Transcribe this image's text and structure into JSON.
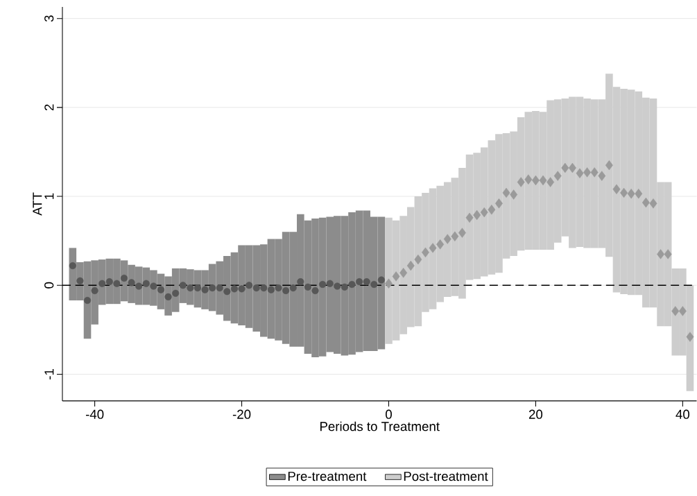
{
  "chart_data": {
    "type": "bar",
    "xlabel": "Periods to Treatment",
    "ylabel": "ATT",
    "xlim": [
      -44.4,
      41.9
    ],
    "ylim": [
      -1.3,
      3.13
    ],
    "xticks": [
      -40,
      -20,
      0,
      20,
      40
    ],
    "yticks": [
      -1,
      0,
      1,
      2,
      3
    ],
    "grid": "y",
    "legend": "bottom",
    "ref_lines": [
      {
        "axis": "y",
        "value": 0,
        "color": "#000000",
        "line_style": "dashed"
      }
    ],
    "series": [
      {
        "name": "Pre-treatment",
        "color": "#8c8c8c",
        "x": [
          -43,
          -42,
          -41,
          -40,
          -39,
          -38,
          -37,
          -36,
          -35,
          -34,
          -33,
          -32,
          -31,
          -30,
          -29,
          -28,
          -27,
          -26,
          -25,
          -24,
          -23,
          -22,
          -21,
          -20,
          -19,
          -18,
          -17,
          -16,
          -15,
          -14,
          -13,
          -12,
          -11,
          -10,
          -9,
          -8,
          -7,
          -6,
          -5,
          -4,
          -3,
          -2,
          -1
        ],
        "base": [
          -0.17,
          -0.17,
          -0.6,
          -0.44,
          -0.22,
          -0.21,
          -0.21,
          -0.18,
          -0.2,
          -0.22,
          -0.22,
          -0.23,
          -0.27,
          -0.34,
          -0.3,
          -0.2,
          -0.22,
          -0.25,
          -0.27,
          -0.29,
          -0.33,
          -0.4,
          -0.43,
          -0.45,
          -0.48,
          -0.52,
          -0.58,
          -0.6,
          -0.62,
          -0.66,
          -0.69,
          -0.69,
          -0.77,
          -0.81,
          -0.8,
          -0.75,
          -0.77,
          -0.79,
          -0.78,
          -0.75,
          -0.74,
          -0.74,
          -0.72
        ],
        "values": [
          0.59,
          0.43,
          0.87,
          0.72,
          0.51,
          0.51,
          0.51,
          0.46,
          0.43,
          0.43,
          0.42,
          0.4,
          0.4,
          0.44,
          0.49,
          0.39,
          0.4,
          0.42,
          0.44,
          0.53,
          0.6,
          0.73,
          0.8,
          0.9,
          0.93,
          0.97,
          1.04,
          1.12,
          1.14,
          1.26,
          1.29,
          1.49,
          1.5,
          1.56,
          1.56,
          1.52,
          1.55,
          1.57,
          1.6,
          1.59,
          1.58,
          1.51,
          1.49
        ]
      },
      {
        "name": "Post-treatment",
        "color": "#cdcdcd",
        "x": [
          0,
          1,
          2,
          3,
          4,
          5,
          6,
          7,
          8,
          9,
          10,
          11,
          12,
          13,
          14,
          15,
          16,
          17,
          18,
          19,
          20,
          21,
          22,
          23,
          24,
          25,
          26,
          27,
          28,
          29,
          30,
          31,
          32,
          33,
          34,
          35,
          36,
          37,
          38,
          39,
          40,
          41
        ],
        "base": [
          -0.66,
          -0.62,
          -0.55,
          -0.47,
          -0.46,
          -0.3,
          -0.27,
          -0.19,
          -0.13,
          -0.12,
          -0.15,
          0.06,
          0.07,
          0.1,
          0.12,
          0.14,
          0.3,
          0.33,
          0.39,
          0.4,
          0.4,
          0.4,
          0.4,
          0.48,
          0.55,
          0.42,
          0.43,
          0.42,
          0.42,
          0.42,
          0.32,
          -0.08,
          -0.1,
          -0.11,
          -0.11,
          -0.25,
          -0.25,
          -0.46,
          -0.46,
          -0.79,
          -0.79,
          -1.19
        ],
        "values": [
          1.42,
          1.35,
          1.33,
          1.35,
          1.46,
          1.34,
          1.36,
          1.31,
          1.29,
          1.33,
          1.47,
          1.41,
          1.42,
          1.45,
          1.51,
          1.56,
          1.41,
          1.4,
          1.5,
          1.55,
          1.56,
          1.55,
          1.68,
          1.61,
          1.55,
          1.7,
          1.69,
          1.68,
          1.67,
          1.67,
          2.06,
          2.31,
          2.31,
          2.31,
          2.29,
          2.36,
          2.35,
          1.62,
          1.62,
          0.98,
          0.98,
          1.19
        ]
      },
      {
        "type": "scatter",
        "marker": "circle",
        "color": "#575757",
        "x": [
          -43,
          -42,
          -41,
          -40,
          -39,
          -38,
          -37,
          -36,
          -35,
          -34,
          -33,
          -32,
          -31,
          -30,
          -29,
          -28,
          -27,
          -26,
          -25,
          -24,
          -23,
          -22,
          -21,
          -20,
          -19,
          -18,
          -17,
          -16,
          -15,
          -14,
          -13,
          -12,
          -11,
          -10,
          -9,
          -8,
          -7,
          -6,
          -5,
          -4,
          -3,
          -2,
          -1
        ],
        "values": [
          0.22,
          0.05,
          -0.17,
          -0.06,
          0.02,
          0.04,
          0.02,
          0.08,
          0.03,
          -0.01,
          0.02,
          -0.01,
          -0.05,
          -0.13,
          -0.09,
          0.0,
          -0.03,
          -0.03,
          -0.05,
          -0.03,
          -0.03,
          -0.07,
          -0.04,
          -0.04,
          0.0,
          -0.03,
          -0.03,
          -0.05,
          -0.03,
          -0.06,
          -0.03,
          0.04,
          -0.02,
          -0.06,
          0.01,
          0.02,
          -0.01,
          -0.02,
          0.01,
          0.04,
          0.04,
          0.01,
          0.06
        ]
      },
      {
        "type": "scatter",
        "marker": "diamond",
        "color": "#9a9a9a",
        "x": [
          0,
          1,
          2,
          3,
          4,
          5,
          6,
          7,
          8,
          9,
          10,
          11,
          12,
          13,
          14,
          15,
          16,
          17,
          18,
          19,
          20,
          21,
          22,
          23,
          24,
          25,
          26,
          27,
          28,
          29,
          30,
          31,
          32,
          33,
          34,
          35,
          36,
          37,
          38,
          39,
          40,
          41
        ],
        "values": [
          0.02,
          0.1,
          0.14,
          0.22,
          0.29,
          0.37,
          0.42,
          0.46,
          0.52,
          0.55,
          0.59,
          0.76,
          0.79,
          0.82,
          0.85,
          0.92,
          1.04,
          1.02,
          1.16,
          1.19,
          1.18,
          1.18,
          1.16,
          1.23,
          1.32,
          1.32,
          1.26,
          1.27,
          1.27,
          1.23,
          1.35,
          1.08,
          1.04,
          1.03,
          1.03,
          0.93,
          0.92,
          0.35,
          0.35,
          -0.29,
          -0.29,
          -0.58
        ]
      }
    ]
  }
}
